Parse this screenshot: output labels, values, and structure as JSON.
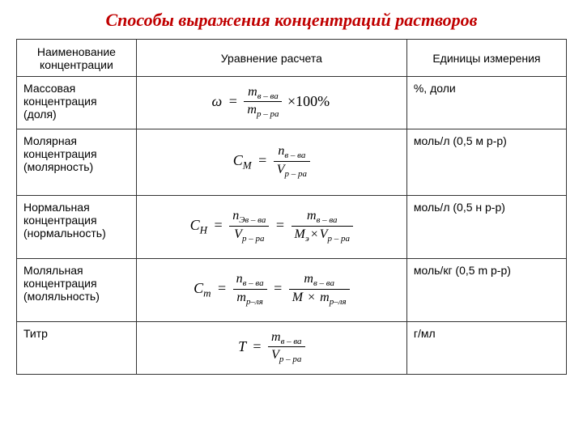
{
  "title": "Способы выражения концентраций растворов",
  "table": {
    "columns": [
      "Наименование концентрации",
      "Уравнение расчета",
      "Единицы измерения"
    ],
    "rows": [
      {
        "name": "Массовая концентрация (доля)",
        "units": "%, доли",
        "formula_id": "mass"
      },
      {
        "name": "Молярная концентрация (молярность)",
        "units": "моль/л (0,5 м р-р)",
        "formula_id": "molar"
      },
      {
        "name": "Нормальная концентрация (нормальность)",
        "units": "моль/л (0,5 н р-р)",
        "formula_id": "normal"
      },
      {
        "name": "Моляльная концентрация (моляльность)",
        "units": "моль/кг (0,5 m р-р)",
        "formula_id": "molal"
      },
      {
        "name": "Титр",
        "units": "г/мл",
        "formula_id": "titer"
      }
    ]
  },
  "colors": {
    "title": "#c00000",
    "border": "#333333",
    "text": "#000000",
    "background": "#ffffff"
  },
  "formula_labels": {
    "omega": "ω",
    "m": "m",
    "n": "n",
    "V": "V",
    "C": "C",
    "T": "T",
    "M": "M",
    "sub_v_va": "в – ва",
    "sub_p_ra": "р – ра",
    "sub_r_lya": "р–ля",
    "sub_ev_va": "Эв – ва",
    "sub_M": "М",
    "sub_m": "m",
    "sub_H": "Н",
    "sub_e": "э",
    "times100": "×100%"
  }
}
